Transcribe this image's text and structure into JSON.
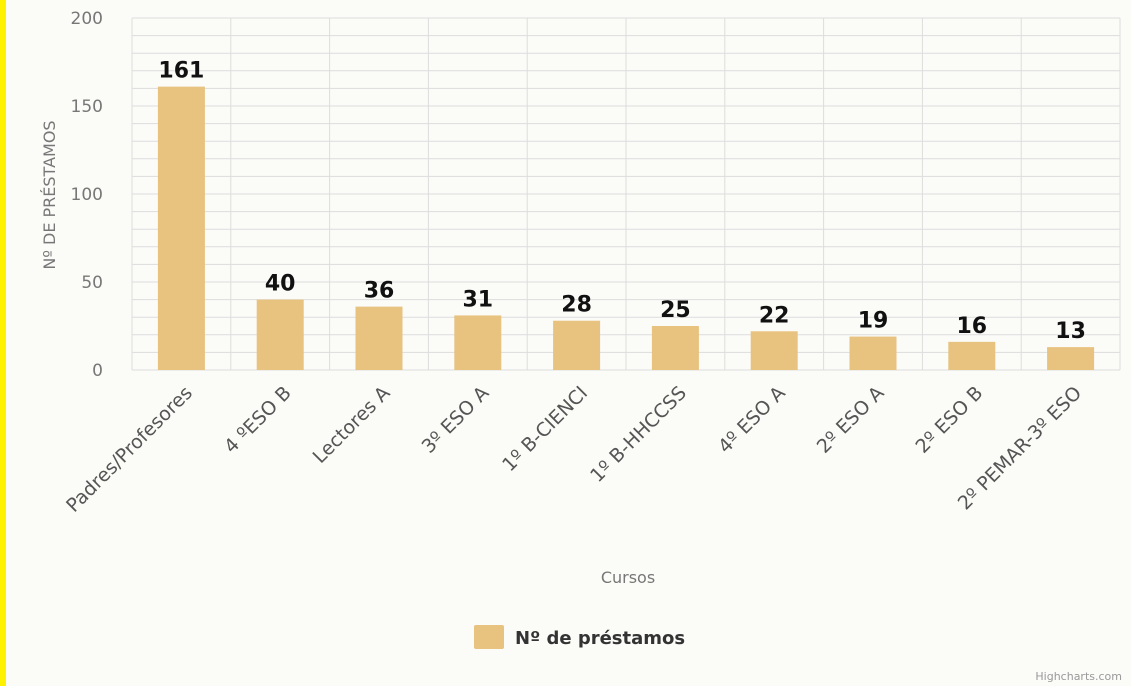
{
  "chart_data": {
    "type": "bar",
    "categories": [
      "Padres/Profesores",
      "4 ºESO B",
      "Lectores A",
      "3º ESO A",
      "1º B-CIENCI",
      "1º B-HHCCSS",
      "4º ESO A",
      "2º ESO A",
      "2º ESO B",
      "2º PEMAR-3º ESO"
    ],
    "series": [
      {
        "name": "Nº de préstamos",
        "values": [
          161,
          40,
          36,
          31,
          28,
          25,
          22,
          19,
          16,
          13
        ]
      }
    ],
    "xlabel": "Cursos",
    "ylabel": "Nº DE PRÉSTAMOS",
    "ylim": [
      0,
      200
    ],
    "yticks": [
      0,
      50,
      100,
      150,
      200
    ],
    "grid": true,
    "legend": "bottom-center",
    "colors": {
      "bar": "#e8c27f",
      "grid": "#dddddd"
    }
  },
  "credits": "Highcharts.com"
}
